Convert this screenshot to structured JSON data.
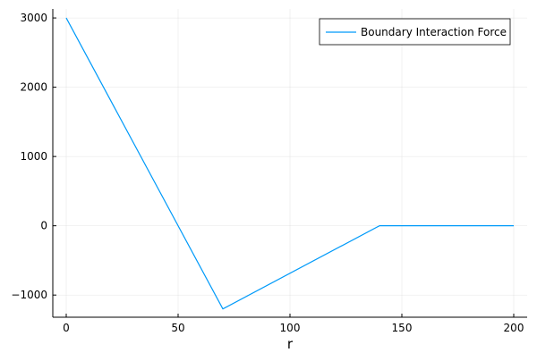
{
  "chart_data": {
    "type": "line",
    "title": "",
    "xlabel": "r",
    "ylabel": "",
    "xlim": [
      -6,
      206
    ],
    "ylim": [
      -1320,
      3130
    ],
    "x_ticks": [
      0,
      50,
      100,
      150,
      200
    ],
    "x_tick_labels": [
      "0",
      "50",
      "100",
      "150",
      "200"
    ],
    "y_ticks": [
      -1000,
      0,
      1000,
      2000,
      3000
    ],
    "y_tick_labels": [
      "−1000",
      "0",
      "1000",
      "2000",
      "3000"
    ],
    "grid": true,
    "legend_position": "top-right",
    "series": [
      {
        "name": "Boundary Interaction Force",
        "color": "#009af9",
        "x": [
          0,
          70,
          140,
          200
        ],
        "y": [
          3000,
          -1200,
          0,
          0
        ]
      }
    ]
  }
}
